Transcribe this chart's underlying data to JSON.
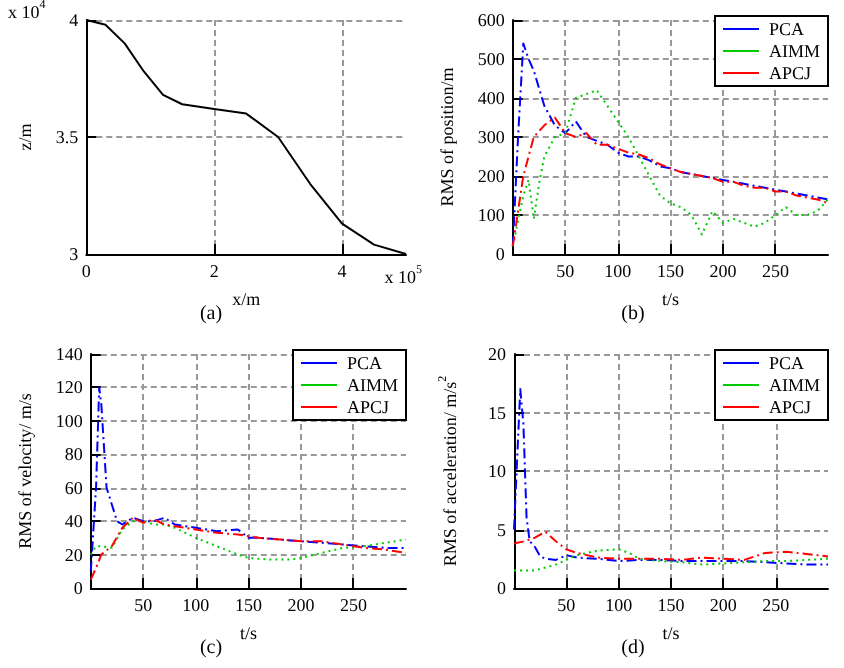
{
  "chart_data": [
    {
      "type": "line",
      "title": "(a)",
      "xlabel": "x/m",
      "ylabel": "z/m",
      "annotations": [
        "x 10$^{4}$",
        "x 10$^{5}$"
      ],
      "xlim": [
        0,
        5
      ],
      "xticks": [
        0,
        2,
        4
      ],
      "ylim": [
        3,
        4
      ],
      "yticks": [
        3,
        3.5,
        4
      ],
      "grid": true,
      "legend": false,
      "line_style": "solid",
      "series": [
        {
          "color": "#000000",
          "x": [
            0,
            0.3,
            0.6,
            0.9,
            1.2,
            1.5,
            2,
            2.5,
            3,
            3.5,
            4,
            4.5,
            5
          ],
          "values": [
            4,
            3.98,
            3.9,
            3.78,
            3.68,
            3.64,
            3.62,
            3.6,
            3.5,
            3.3,
            3.13,
            3.04,
            3
          ]
        }
      ]
    },
    {
      "type": "line",
      "title": "(b)",
      "xlabel": "t/s",
      "ylabel": "RMS of position/m",
      "xlim": [
        0,
        300
      ],
      "xticks": [
        50,
        100,
        150,
        200,
        250
      ],
      "ylim": [
        0,
        600
      ],
      "yticks": [
        0,
        100,
        200,
        300,
        400,
        500,
        600
      ],
      "grid": true,
      "legend": "top right",
      "series": [
        {
          "name": "PCA",
          "color": "#0000ff",
          "line_style": "dashed",
          "x": [
            0,
            5,
            10,
            15,
            20,
            30,
            40,
            50,
            60,
            70,
            80,
            90,
            100,
            110,
            120,
            130,
            140,
            150,
            160,
            170,
            180,
            190,
            200,
            210,
            220,
            230,
            240,
            250,
            260,
            270,
            280,
            290,
            300
          ],
          "values": [
            20,
            300,
            540,
            500,
            470,
            380,
            330,
            310,
            340,
            300,
            290,
            280,
            260,
            250,
            250,
            240,
            225,
            220,
            210,
            205,
            200,
            195,
            190,
            185,
            180,
            175,
            170,
            165,
            160,
            155,
            150,
            145,
            140
          ]
        },
        {
          "name": "AIMM",
          "color": "#00cc00",
          "line_style": "dotted",
          "x": [
            0,
            10,
            15,
            20,
            25,
            30,
            40,
            50,
            60,
            70,
            80,
            90,
            100,
            110,
            120,
            130,
            140,
            150,
            160,
            170,
            180,
            190,
            200,
            210,
            220,
            230,
            240,
            250,
            260,
            270,
            280,
            290,
            300
          ],
          "values": [
            20,
            150,
            190,
            90,
            180,
            250,
            300,
            310,
            400,
            410,
            420,
            380,
            340,
            300,
            250,
            200,
            150,
            130,
            120,
            100,
            50,
            110,
            80,
            90,
            80,
            70,
            80,
            100,
            120,
            100,
            100,
            110,
            140
          ]
        },
        {
          "name": "APCJ",
          "color": "#ff0000",
          "line_style": "dashed",
          "x": [
            0,
            10,
            20,
            30,
            40,
            50,
            60,
            70,
            80,
            90,
            100,
            110,
            120,
            130,
            140,
            150,
            160,
            170,
            180,
            190,
            200,
            210,
            220,
            230,
            240,
            250,
            260,
            270,
            280,
            290,
            300
          ],
          "values": [
            20,
            200,
            300,
            330,
            350,
            310,
            300,
            310,
            280,
            280,
            270,
            260,
            255,
            245,
            230,
            220,
            210,
            205,
            200,
            195,
            185,
            185,
            175,
            170,
            170,
            160,
            160,
            150,
            145,
            140,
            130
          ]
        }
      ]
    },
    {
      "type": "line",
      "title": "(c)",
      "xlabel": "t/s",
      "ylabel": "RMS of velocity/ m/s",
      "xlim": [
        0,
        300
      ],
      "xticks": [
        50,
        100,
        150,
        200,
        250
      ],
      "ylim": [
        0,
        140
      ],
      "yticks": [
        0,
        20,
        40,
        60,
        80,
        100,
        120,
        140
      ],
      "grid": true,
      "legend": "top right",
      "series": [
        {
          "name": "PCA",
          "color": "#0000ff",
          "line_style": "dashed",
          "x": [
            0,
            5,
            8,
            10,
            15,
            20,
            25,
            30,
            40,
            50,
            60,
            70,
            80,
            90,
            100,
            120,
            140,
            150,
            160,
            180,
            200,
            220,
            240,
            260,
            280,
            300
          ],
          "values": [
            10,
            60,
            120,
            110,
            60,
            50,
            40,
            38,
            42,
            40,
            40,
            42,
            38,
            37,
            36,
            34,
            35,
            30,
            30,
            29,
            28,
            27,
            26,
            25,
            24,
            24
          ]
        },
        {
          "name": "AIMM",
          "color": "#00cc00",
          "line_style": "dotted",
          "x": [
            0,
            5,
            10,
            20,
            30,
            40,
            50,
            60,
            70,
            80,
            90,
            100,
            120,
            140,
            150,
            170,
            190,
            200,
            220,
            240,
            260,
            280,
            300
          ],
          "values": [
            20,
            25,
            25,
            24,
            35,
            40,
            40,
            38,
            38,
            36,
            33,
            30,
            25,
            20,
            18,
            17,
            17,
            18,
            21,
            24,
            25,
            27,
            29
          ]
        },
        {
          "name": "APCJ",
          "color": "#ff0000",
          "line_style": "dashed",
          "x": [
            0,
            5,
            10,
            20,
            30,
            40,
            50,
            60,
            70,
            80,
            100,
            120,
            140,
            160,
            180,
            200,
            220,
            240,
            260,
            280,
            300
          ],
          "values": [
            5,
            12,
            20,
            25,
            36,
            42,
            39,
            41,
            38,
            37,
            35,
            33,
            32,
            30,
            29,
            28,
            28,
            26,
            24,
            23,
            21
          ]
        }
      ]
    },
    {
      "type": "line",
      "title": "(d)",
      "xlabel": "t/s",
      "ylabel": "RMS of acceleration/ m/s$^{2}$",
      "xlim": [
        0,
        300
      ],
      "xticks": [
        50,
        100,
        150,
        200,
        250
      ],
      "ylim": [
        0,
        20
      ],
      "yticks": [
        0,
        5,
        10,
        15,
        20
      ],
      "grid": true,
      "legend": "top right",
      "series": [
        {
          "name": "PCA",
          "color": "#0000ff",
          "line_style": "dashed",
          "x": [
            0,
            3,
            6,
            9,
            12,
            15,
            20,
            25,
            30,
            40,
            50,
            60,
            80,
            100,
            120,
            140,
            160,
            180,
            200,
            220,
            240,
            260,
            280,
            300
          ],
          "values": [
            5,
            11,
            17,
            14,
            6,
            4,
            3.5,
            2.7,
            2.5,
            2.4,
            2.8,
            2.6,
            2.5,
            2.3,
            2.4,
            2.4,
            2.3,
            2.3,
            2.3,
            2.3,
            2.2,
            2.1,
            2,
            2
          ]
        },
        {
          "name": "AIMM",
          "color": "#00cc00",
          "line_style": "dotted",
          "x": [
            0,
            20,
            40,
            60,
            80,
            100,
            110,
            120,
            140,
            160,
            180,
            200,
            220,
            240,
            260,
            280,
            300
          ],
          "values": [
            1.5,
            1.5,
            2,
            2.8,
            3.2,
            3.3,
            3,
            2.5,
            2.3,
            2.2,
            2,
            2.1,
            2.2,
            2.3,
            2.3,
            2.4,
            2.5
          ]
        },
        {
          "name": "APCJ",
          "color": "#ff0000",
          "line_style": "dashed",
          "x": [
            0,
            10,
            20,
            30,
            40,
            50,
            60,
            80,
            100,
            120,
            140,
            160,
            180,
            200,
            220,
            240,
            260,
            280,
            300
          ],
          "values": [
            3.8,
            4,
            4.3,
            4.8,
            4,
            3.3,
            3,
            2.6,
            2.5,
            2.5,
            2.5,
            2.4,
            2.6,
            2.5,
            2.4,
            3,
            3.1,
            2.9,
            2.7
          ]
        }
      ]
    }
  ]
}
